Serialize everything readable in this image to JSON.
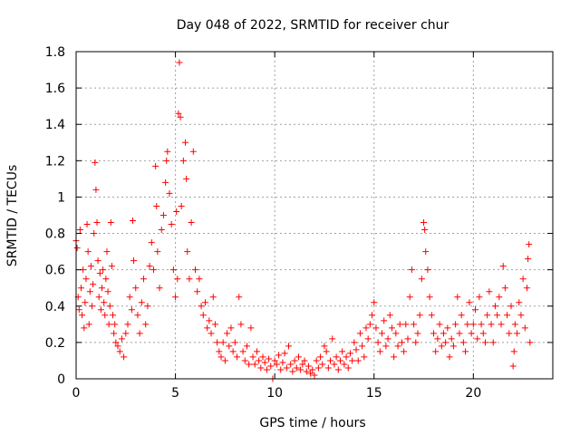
{
  "chart_data": {
    "type": "scatter",
    "title": "Day 048 of 2022, SRMTID for receiver chur",
    "xlabel": "GPS time / hours",
    "ylabel": "SRMTID / TECUs",
    "xlim": [
      0,
      24
    ],
    "ylim": [
      0,
      1.8
    ],
    "xticks": [
      0,
      5,
      10,
      15,
      20
    ],
    "yticks": [
      0,
      0.2,
      0.4,
      0.6,
      0.8,
      1,
      1.2,
      1.4,
      1.6,
      1.8
    ],
    "ytick_labels": [
      "0",
      "0.2",
      "0.4",
      "0.6",
      "0.8",
      "1",
      "1.2",
      "1.4",
      "1.6",
      "1.8"
    ],
    "grid": true,
    "marker": "+",
    "color": "#ff0000",
    "series": [
      {
        "name": "SRMTID",
        "points": [
          [
            0.0,
            0.76
          ],
          [
            0.05,
            0.72
          ],
          [
            0.1,
            0.45
          ],
          [
            0.15,
            0.38
          ],
          [
            0.2,
            0.82
          ],
          [
            0.25,
            0.5
          ],
          [
            0.3,
            0.35
          ],
          [
            0.35,
            0.6
          ],
          [
            0.4,
            0.28
          ],
          [
            0.45,
            0.42
          ],
          [
            0.5,
            0.55
          ],
          [
            0.55,
            0.85
          ],
          [
            0.6,
            0.7
          ],
          [
            0.65,
            0.3
          ],
          [
            0.7,
            0.48
          ],
          [
            0.75,
            0.62
          ],
          [
            0.8,
            0.4
          ],
          [
            0.85,
            0.52
          ],
          [
            0.9,
            0.8
          ],
          [
            0.95,
            1.19
          ],
          [
            1.0,
            1.04
          ],
          [
            1.05,
            0.86
          ],
          [
            1.1,
            0.65
          ],
          [
            1.15,
            0.45
          ],
          [
            1.2,
            0.58
          ],
          [
            1.25,
            0.38
          ],
          [
            1.3,
            0.5
          ],
          [
            1.35,
            0.6
          ],
          [
            1.4,
            0.42
          ],
          [
            1.45,
            0.35
          ],
          [
            1.5,
            0.55
          ],
          [
            1.55,
            0.7
          ],
          [
            1.6,
            0.48
          ],
          [
            1.65,
            0.3
          ],
          [
            1.7,
            0.4
          ],
          [
            1.75,
            0.86
          ],
          [
            1.8,
            0.62
          ],
          [
            1.85,
            0.35
          ],
          [
            1.9,
            0.25
          ],
          [
            1.95,
            0.3
          ],
          [
            2.0,
            0.2
          ],
          [
            2.1,
            0.18
          ],
          [
            2.2,
            0.15
          ],
          [
            2.3,
            0.22
          ],
          [
            2.4,
            0.12
          ],
          [
            2.5,
            0.25
          ],
          [
            2.6,
            0.3
          ],
          [
            2.7,
            0.45
          ],
          [
            2.8,
            0.38
          ],
          [
            2.85,
            0.87
          ],
          [
            2.9,
            0.65
          ],
          [
            3.0,
            0.5
          ],
          [
            3.1,
            0.35
          ],
          [
            3.2,
            0.25
          ],
          [
            3.3,
            0.42
          ],
          [
            3.4,
            0.55
          ],
          [
            3.5,
            0.3
          ],
          [
            3.6,
            0.4
          ],
          [
            3.7,
            0.62
          ],
          [
            3.8,
            0.75
          ],
          [
            3.9,
            0.6
          ],
          [
            4.0,
            1.17
          ],
          [
            4.05,
            0.95
          ],
          [
            4.1,
            0.7
          ],
          [
            4.2,
            0.5
          ],
          [
            4.3,
            0.82
          ],
          [
            4.4,
            0.9
          ],
          [
            4.5,
            1.08
          ],
          [
            4.55,
            1.2
          ],
          [
            4.6,
            1.25
          ],
          [
            4.7,
            1.02
          ],
          [
            4.8,
            0.85
          ],
          [
            4.9,
            0.6
          ],
          [
            5.0,
            0.45
          ],
          [
            5.05,
            0.92
          ],
          [
            5.1,
            0.55
          ],
          [
            5.15,
            1.46
          ],
          [
            5.2,
            1.74
          ],
          [
            5.25,
            1.44
          ],
          [
            5.3,
            0.95
          ],
          [
            5.4,
            1.2
          ],
          [
            5.5,
            1.3
          ],
          [
            5.55,
            1.1
          ],
          [
            5.6,
            0.7
          ],
          [
            5.7,
            0.55
          ],
          [
            5.8,
            0.86
          ],
          [
            5.9,
            1.25
          ],
          [
            6.0,
            0.6
          ],
          [
            6.1,
            0.48
          ],
          [
            6.2,
            0.55
          ],
          [
            6.3,
            0.4
          ],
          [
            6.4,
            0.35
          ],
          [
            6.5,
            0.42
          ],
          [
            6.6,
            0.28
          ],
          [
            6.7,
            0.32
          ],
          [
            6.8,
            0.25
          ],
          [
            6.9,
            0.45
          ],
          [
            7.0,
            0.3
          ],
          [
            7.1,
            0.2
          ],
          [
            7.2,
            0.15
          ],
          [
            7.3,
            0.12
          ],
          [
            7.4,
            0.2
          ],
          [
            7.5,
            0.1
          ],
          [
            7.6,
            0.25
          ],
          [
            7.7,
            0.18
          ],
          [
            7.8,
            0.28
          ],
          [
            7.9,
            0.15
          ],
          [
            8.0,
            0.2
          ],
          [
            8.1,
            0.12
          ],
          [
            8.2,
            0.45
          ],
          [
            8.3,
            0.3
          ],
          [
            8.4,
            0.15
          ],
          [
            8.5,
            0.1
          ],
          [
            8.6,
            0.18
          ],
          [
            8.7,
            0.08
          ],
          [
            8.8,
            0.28
          ],
          [
            8.9,
            0.12
          ],
          [
            9.0,
            0.08
          ],
          [
            9.1,
            0.15
          ],
          [
            9.2,
            0.1
          ],
          [
            9.3,
            0.06
          ],
          [
            9.4,
            0.12
          ],
          [
            9.5,
            0.09
          ],
          [
            9.6,
            0.05
          ],
          [
            9.7,
            0.11
          ],
          [
            9.8,
            0.07
          ],
          [
            9.9,
            0.0
          ],
          [
            10.0,
            0.1
          ],
          [
            10.1,
            0.08
          ],
          [
            10.2,
            0.13
          ],
          [
            10.3,
            0.05
          ],
          [
            10.4,
            0.09
          ],
          [
            10.5,
            0.14
          ],
          [
            10.6,
            0.06
          ],
          [
            10.7,
            0.18
          ],
          [
            10.8,
            0.08
          ],
          [
            10.9,
            0.04
          ],
          [
            11.0,
            0.1
          ],
          [
            11.1,
            0.06
          ],
          [
            11.2,
            0.12
          ],
          [
            11.3,
            0.05
          ],
          [
            11.4,
            0.08
          ],
          [
            11.5,
            0.1
          ],
          [
            11.6,
            0.04
          ],
          [
            11.7,
            0.07
          ],
          [
            11.8,
            0.03
          ],
          [
            11.9,
            0.05
          ],
          [
            12.0,
            0.02
          ],
          [
            12.1,
            0.1
          ],
          [
            12.2,
            0.06
          ],
          [
            12.3,
            0.12
          ],
          [
            12.4,
            0.08
          ],
          [
            12.5,
            0.18
          ],
          [
            12.6,
            0.15
          ],
          [
            12.7,
            0.06
          ],
          [
            12.8,
            0.1
          ],
          [
            12.9,
            0.22
          ],
          [
            13.0,
            0.08
          ],
          [
            13.1,
            0.12
          ],
          [
            13.2,
            0.05
          ],
          [
            13.3,
            0.1
          ],
          [
            13.4,
            0.15
          ],
          [
            13.5,
            0.08
          ],
          [
            13.6,
            0.12
          ],
          [
            13.7,
            0.06
          ],
          [
            13.8,
            0.14
          ],
          [
            13.9,
            0.1
          ],
          [
            14.0,
            0.2
          ],
          [
            14.1,
            0.16
          ],
          [
            14.2,
            0.1
          ],
          [
            14.3,
            0.25
          ],
          [
            14.4,
            0.18
          ],
          [
            14.5,
            0.12
          ],
          [
            14.6,
            0.28
          ],
          [
            14.7,
            0.22
          ],
          [
            14.8,
            0.3
          ],
          [
            14.9,
            0.35
          ],
          [
            15.0,
            0.42
          ],
          [
            15.1,
            0.28
          ],
          [
            15.2,
            0.2
          ],
          [
            15.3,
            0.15
          ],
          [
            15.4,
            0.25
          ],
          [
            15.5,
            0.32
          ],
          [
            15.6,
            0.18
          ],
          [
            15.7,
            0.22
          ],
          [
            15.8,
            0.35
          ],
          [
            15.9,
            0.28
          ],
          [
            16.0,
            0.12
          ],
          [
            16.1,
            0.25
          ],
          [
            16.2,
            0.18
          ],
          [
            16.3,
            0.3
          ],
          [
            16.4,
            0.2
          ],
          [
            16.5,
            0.15
          ],
          [
            16.6,
            0.3
          ],
          [
            16.7,
            0.22
          ],
          [
            16.8,
            0.45
          ],
          [
            16.9,
            0.6
          ],
          [
            17.0,
            0.3
          ],
          [
            17.1,
            0.2
          ],
          [
            17.2,
            0.25
          ],
          [
            17.3,
            0.35
          ],
          [
            17.4,
            0.55
          ],
          [
            17.5,
            0.86
          ],
          [
            17.55,
            0.82
          ],
          [
            17.6,
            0.7
          ],
          [
            17.7,
            0.6
          ],
          [
            17.8,
            0.45
          ],
          [
            17.9,
            0.35
          ],
          [
            18.0,
            0.25
          ],
          [
            18.1,
            0.15
          ],
          [
            18.2,
            0.22
          ],
          [
            18.3,
            0.3
          ],
          [
            18.4,
            0.18
          ],
          [
            18.5,
            0.25
          ],
          [
            18.6,
            0.2
          ],
          [
            18.7,
            0.28
          ],
          [
            18.8,
            0.12
          ],
          [
            18.9,
            0.22
          ],
          [
            19.0,
            0.18
          ],
          [
            19.1,
            0.3
          ],
          [
            19.2,
            0.45
          ],
          [
            19.3,
            0.25
          ],
          [
            19.4,
            0.35
          ],
          [
            19.5,
            0.2
          ],
          [
            19.6,
            0.15
          ],
          [
            19.7,
            0.3
          ],
          [
            19.8,
            0.42
          ],
          [
            19.9,
            0.25
          ],
          [
            20.0,
            0.3
          ],
          [
            20.1,
            0.38
          ],
          [
            20.2,
            0.22
          ],
          [
            20.3,
            0.45
          ],
          [
            20.4,
            0.3
          ],
          [
            20.5,
            0.25
          ],
          [
            20.6,
            0.2
          ],
          [
            20.7,
            0.35
          ],
          [
            20.8,
            0.48
          ],
          [
            20.9,
            0.3
          ],
          [
            21.0,
            0.2
          ],
          [
            21.1,
            0.4
          ],
          [
            21.2,
            0.35
          ],
          [
            21.3,
            0.45
          ],
          [
            21.4,
            0.3
          ],
          [
            21.5,
            0.62
          ],
          [
            21.6,
            0.5
          ],
          [
            21.7,
            0.35
          ],
          [
            21.8,
            0.25
          ],
          [
            21.9,
            0.4
          ],
          [
            22.0,
            0.07
          ],
          [
            22.05,
            0.15
          ],
          [
            22.1,
            0.3
          ],
          [
            22.2,
            0.25
          ],
          [
            22.3,
            0.42
          ],
          [
            22.4,
            0.35
          ],
          [
            22.5,
            0.55
          ],
          [
            22.6,
            0.28
          ],
          [
            22.7,
            0.5
          ],
          [
            22.75,
            0.66
          ],
          [
            22.8,
            0.74
          ],
          [
            22.85,
            0.2
          ]
        ]
      }
    ]
  }
}
